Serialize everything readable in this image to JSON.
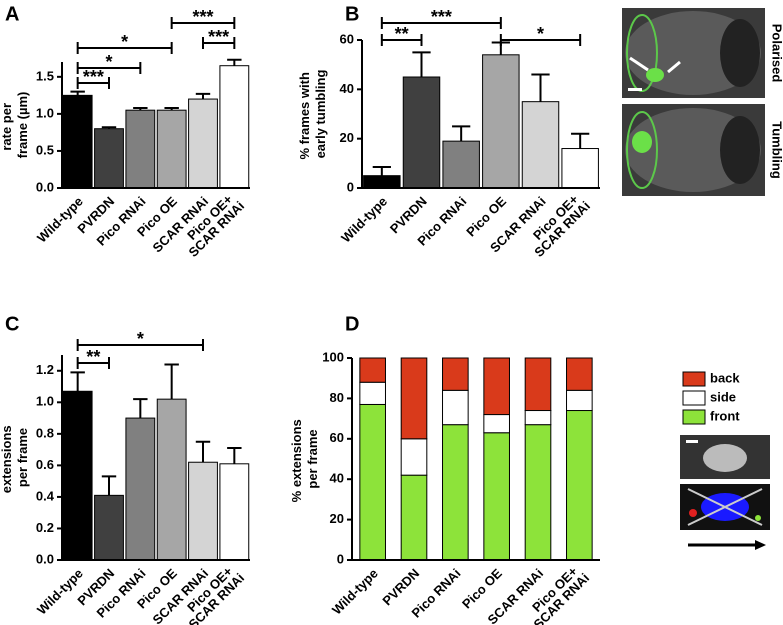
{
  "chart_data": [
    {
      "type": "bar",
      "panel": "A",
      "ylabel": "rate per frame (µm)",
      "categories": [
        "Wild-type",
        "PVRDN",
        "Pico RNAi",
        "Pico OE",
        "SCAR RNAi",
        "Pico OE+ SCAR RNAi"
      ],
      "values": [
        1.25,
        0.8,
        1.05,
        1.05,
        1.2,
        1.65
      ],
      "errors": [
        0.05,
        0.02,
        0.03,
        0.03,
        0.07,
        0.08
      ],
      "colors": [
        "#000000",
        "#404040",
        "#808080",
        "#a6a6a6",
        "#d4d4d4",
        "#ffffff"
      ],
      "ylim": [
        0,
        1.7
      ],
      "yticks": [
        {
          "value": 0,
          "label": "0.0"
        },
        0.5,
        {
          "value": 1,
          "label": "1.0"
        },
        1.5
      ],
      "annotations": [
        "***",
        "*",
        "*",
        "***",
        "***"
      ]
    },
    {
      "type": "bar",
      "panel": "B",
      "ylabel": "% frames with early tumbling",
      "categories": [
        "Wild-type",
        "PVRDN",
        "Pico RNAi",
        "Pico OE",
        "SCAR RNAi",
        "Pico OE+ SCAR RNAi"
      ],
      "values": [
        5,
        45,
        19,
        54,
        35,
        16
      ],
      "errors": [
        3.5,
        10,
        6,
        5,
        11,
        6
      ],
      "colors": [
        "#000000",
        "#404040",
        "#808080",
        "#a6a6a6",
        "#d4d4d4",
        "#ffffff"
      ],
      "ylim": [
        0,
        60
      ],
      "yticks": [
        0,
        20,
        40,
        60
      ],
      "annotations": [
        "**",
        "***",
        "*"
      ],
      "image_labels": [
        "Polarised",
        "Tumbling"
      ]
    },
    {
      "type": "bar",
      "panel": "C",
      "ylabel": "extensions per frame",
      "categories": [
        "Wild-type",
        "PVRDN",
        "Pico RNAi",
        "Pico OE",
        "SCAR RNAi",
        "Pico OE+ SCAR RNAi"
      ],
      "values": [
        1.07,
        0.41,
        0.9,
        1.02,
        0.62,
        0.61
      ],
      "errors": [
        0.12,
        0.12,
        0.12,
        0.22,
        0.13,
        0.1
      ],
      "colors": [
        "#000000",
        "#404040",
        "#808080",
        "#a6a6a6",
        "#d4d4d4",
        "#ffffff"
      ],
      "ylim": [
        0,
        1.3
      ],
      "yticks": [
        {
          "value": 0,
          "label": "0.0"
        },
        0.2,
        0.4,
        0.6,
        0.8,
        {
          "value": 1,
          "label": "1.0"
        },
        1.2
      ],
      "annotations": [
        "**",
        "*"
      ]
    },
    {
      "type": "stacked-bar",
      "panel": "D",
      "ylabel": "% extensions per frame",
      "categories": [
        "Wild-type",
        "PVRDN",
        "Pico RNAi",
        "Pico OE",
        "SCAR RNAi",
        "Pico OE+ SCAR RNAi"
      ],
      "series": [
        {
          "name": "front",
          "color": "#8de33a",
          "values": [
            77,
            42,
            67,
            63,
            67,
            74
          ]
        },
        {
          "name": "side",
          "color": "#ffffff",
          "values": [
            11,
            18,
            17,
            9,
            7,
            10
          ]
        },
        {
          "name": "back",
          "color": "#d93a1b",
          "values": [
            12,
            40,
            16,
            28,
            26,
            16
          ]
        }
      ],
      "ylim": [
        0,
        100
      ],
      "yticks": [
        0,
        20,
        40,
        60,
        80,
        100
      ]
    }
  ]
}
